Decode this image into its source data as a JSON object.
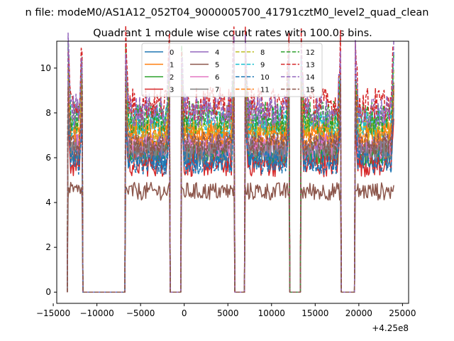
{
  "chart_data": {
    "type": "line",
    "suptitle": "n file: modeM0/AS1A12_052T04_9000005700_41791cztM0_level2_quad_clean",
    "title": "Quadrant 1 module wise count rates with 100.0s bins.",
    "xlabel": "",
    "ylabel": "",
    "x_offset_label": "+4.25e8",
    "xlim": [
      -14600,
      25700
    ],
    "ylim": [
      -0.5,
      11.2
    ],
    "x_ticks": [
      -15000,
      -10000,
      -5000,
      0,
      5000,
      10000,
      15000,
      20000,
      25000
    ],
    "x_tick_labels": [
      "−15000",
      "−10000",
      "−5000",
      "0",
      "5000",
      "10000",
      "15000",
      "20000",
      "25000"
    ],
    "y_ticks": [
      0,
      2,
      4,
      6,
      8,
      10
    ],
    "y_tick_labels": [
      "0",
      "2",
      "4",
      "6",
      "8",
      "10"
    ],
    "grid": false,
    "legend_position": "top-center",
    "legend_columns": 4,
    "bin_seconds": 100,
    "observation_segments": [
      {
        "start": -13300,
        "end": -11700
      },
      {
        "start": -6700,
        "end": -1700
      },
      {
        "start": -300,
        "end": 5700
      },
      {
        "start": 7000,
        "end": 12000
      },
      {
        "start": 13400,
        "end": 17900
      },
      {
        "start": 19600,
        "end": 24000
      }
    ],
    "series": [
      {
        "name": "0",
        "color": "#1f77b4",
        "dash": "solid",
        "mean": 6.0
      },
      {
        "name": "1",
        "color": "#ff7f0e",
        "dash": "solid",
        "mean": 7.2
      },
      {
        "name": "2",
        "color": "#2ca02c",
        "dash": "solid",
        "mean": 6.2
      },
      {
        "name": "3",
        "color": "#d62728",
        "dash": "solid",
        "mean": 5.7
      },
      {
        "name": "4",
        "color": "#9467bd",
        "dash": "solid",
        "mean": 6.6
      },
      {
        "name": "5",
        "color": "#8c564b",
        "dash": "solid",
        "mean": 4.5
      },
      {
        "name": "6",
        "color": "#e377c2",
        "dash": "solid",
        "mean": 6.5
      },
      {
        "name": "7",
        "color": "#7f7f7f",
        "dash": "solid",
        "mean": 6.3
      },
      {
        "name": "8",
        "color": "#bcbd22",
        "dash": "dashed",
        "mean": 7.3
      },
      {
        "name": "9",
        "color": "#17becf",
        "dash": "dashed",
        "mean": 7.6
      },
      {
        "name": "10",
        "color": "#1f77b4",
        "dash": "dashed",
        "mean": 5.8
      },
      {
        "name": "11",
        "color": "#ff7f0e",
        "dash": "dashed",
        "mean": 7.0
      },
      {
        "name": "12",
        "color": "#2ca02c",
        "dash": "dashed",
        "mean": 7.8
      },
      {
        "name": "13",
        "color": "#d62728",
        "dash": "dashed",
        "mean": 8.4
      },
      {
        "name": "14",
        "color": "#9467bd",
        "dash": "dashed",
        "mean": 8.1
      },
      {
        "name": "15",
        "color": "#8c564b",
        "dash": "dashed",
        "mean": 6.6
      }
    ]
  }
}
